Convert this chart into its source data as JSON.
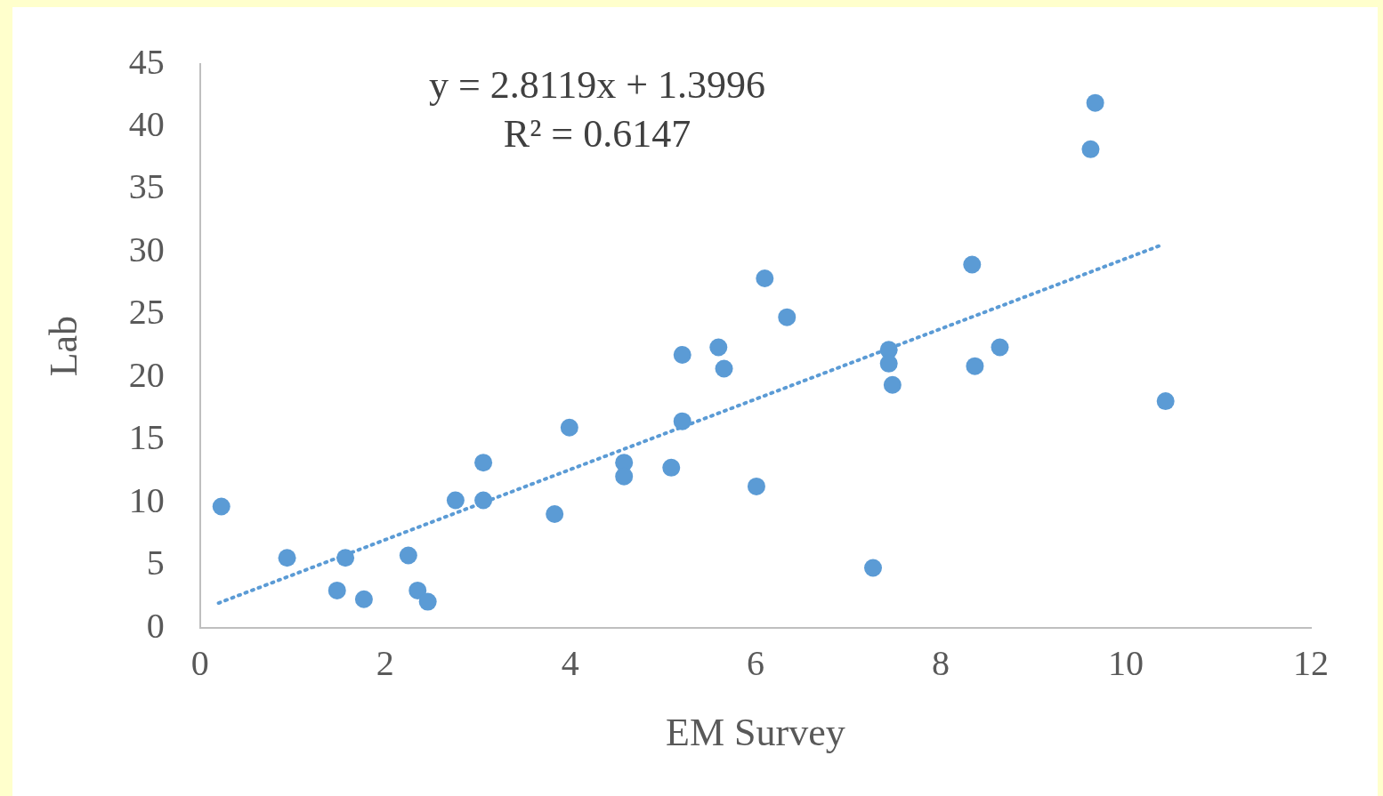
{
  "chart_data": {
    "type": "scatter",
    "xlabel": "EM Survey",
    "ylabel": "Lab",
    "annotations": [
      "y = 2.8119x + 1.3996",
      "R² = 0.6147"
    ],
    "x": [
      0.23,
      0.94,
      1.48,
      1.57,
      1.77,
      2.25,
      2.35,
      2.46,
      2.76,
      3.06,
      3.06,
      3.83,
      3.99,
      4.58,
      4.58,
      5.09,
      5.21,
      5.21,
      5.6,
      5.66,
      6.01,
      6.1,
      6.34,
      7.27,
      7.44,
      7.44,
      7.48,
      8.34,
      8.37,
      8.64,
      9.62,
      9.67,
      10.43
    ],
    "series": [
      {
        "color": "#5b9bd5",
        "values": [
          9.7,
          5.6,
          3.0,
          5.6,
          2.3,
          5.8,
          3.0,
          2.1,
          10.2,
          13.2,
          10.2,
          9.1,
          16.0,
          13.2,
          12.1,
          12.8,
          21.8,
          16.5,
          22.4,
          20.7,
          11.3,
          27.9,
          24.8,
          4.8,
          22.2,
          21.1,
          19.4,
          29.0,
          20.9,
          22.4,
          38.2,
          41.9,
          18.1
        ]
      },
      {
        "type": "line",
        "color": "#5b9bd5",
        "line_style": "dotted",
        "marker": "none",
        "x": [
          0.2,
          10.4
        ],
        "values": [
          2.0,
          30.6
        ]
      }
    ],
    "marker": "circle",
    "xlim": [
      0,
      12
    ],
    "ylim": [
      0,
      45
    ],
    "xticks": [
      0,
      2,
      4,
      6,
      8,
      10,
      12
    ],
    "yticks": [
      0,
      5,
      10,
      15,
      20,
      25,
      30,
      35,
      40,
      45
    ],
    "grid": false,
    "legend": false
  }
}
